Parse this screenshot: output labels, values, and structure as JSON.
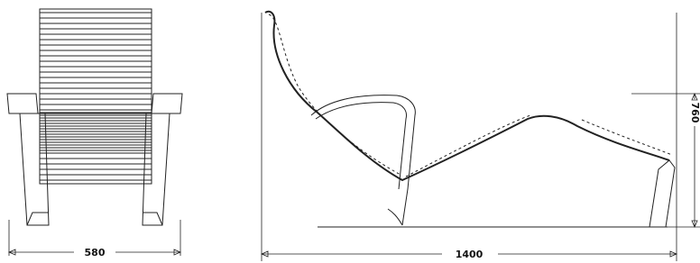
{
  "dimensions": {
    "front_width": "580",
    "side_length": "1400",
    "height": "760"
  }
}
